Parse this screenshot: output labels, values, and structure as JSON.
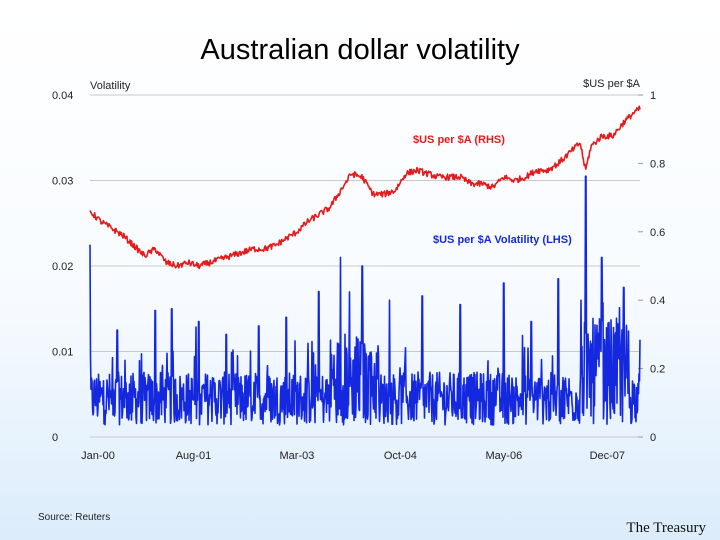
{
  "slide": {
    "title": "Australian dollar volatility",
    "source": "Source: Reuters",
    "organisation": "The Treasury"
  },
  "chart_data": {
    "type": "line",
    "title": "Australian dollar volatility",
    "ylabel_left": "Volatility",
    "ylabel_right": "$US per $A",
    "y_left_range": [
      0,
      0.04
    ],
    "y_left_ticks": [
      "0",
      "0.01",
      "0.02",
      "0.03",
      "0.04"
    ],
    "y_right_range": [
      0,
      1
    ],
    "y_right_ticks": [
      "0",
      "0.2",
      "0.4",
      "0.6",
      "0.8",
      "1"
    ],
    "x_range": [
      "2000-01",
      "2008-06"
    ],
    "x_ticks": [
      "Jan-00",
      "Aug-01",
      "Mar-03",
      "Oct-04",
      "May-06",
      "Dec-07"
    ],
    "grid": "horizontal",
    "colors": {
      "rhs_series": "#e51a1a",
      "lhs_series": "#1428e0"
    },
    "series": [
      {
        "name": "$US per $A (RHS)",
        "axis": "right",
        "x": [
          "2000-01",
          "2000-03",
          "2000-05",
          "2000-07",
          "2000-09",
          "2000-11",
          "2001-01",
          "2001-03",
          "2001-05",
          "2001-07",
          "2001-09",
          "2001-11",
          "2002-01",
          "2002-03",
          "2002-05",
          "2002-07",
          "2002-09",
          "2002-11",
          "2003-01",
          "2003-03",
          "2003-05",
          "2003-07",
          "2003-09",
          "2003-11",
          "2004-01",
          "2004-03",
          "2004-05",
          "2004-07",
          "2004-09",
          "2004-11",
          "2005-01",
          "2005-03",
          "2005-05",
          "2005-07",
          "2005-09",
          "2005-11",
          "2006-01",
          "2006-03",
          "2006-05",
          "2006-07",
          "2006-09",
          "2006-11",
          "2007-01",
          "2007-03",
          "2007-05",
          "2007-07",
          "2007-08",
          "2007-09",
          "2007-11",
          "2008-01",
          "2008-03",
          "2008-05",
          "2008-06"
        ],
        "values": [
          0.66,
          0.63,
          0.61,
          0.59,
          0.56,
          0.53,
          0.55,
          0.51,
          0.5,
          0.51,
          0.5,
          0.51,
          0.52,
          0.53,
          0.54,
          0.55,
          0.55,
          0.56,
          0.58,
          0.6,
          0.63,
          0.65,
          0.67,
          0.72,
          0.77,
          0.76,
          0.71,
          0.71,
          0.72,
          0.77,
          0.78,
          0.77,
          0.76,
          0.76,
          0.76,
          0.74,
          0.74,
          0.73,
          0.76,
          0.75,
          0.76,
          0.78,
          0.78,
          0.8,
          0.83,
          0.86,
          0.78,
          0.85,
          0.88,
          0.88,
          0.92,
          0.95,
          0.96
        ]
      },
      {
        "name": "$US per $A Volatility (LHS)",
        "axis": "left",
        "baseline": 0.004,
        "peaks": [
          {
            "x": "2000-01",
            "value": 0.0225
          },
          {
            "x": "2000-06",
            "value": 0.0125
          },
          {
            "x": "2001-01",
            "value": 0.0148
          },
          {
            "x": "2001-04",
            "value": 0.015
          },
          {
            "x": "2001-09",
            "value": 0.0135
          },
          {
            "x": "2002-02",
            "value": 0.012
          },
          {
            "x": "2002-08",
            "value": 0.013
          },
          {
            "x": "2003-01",
            "value": 0.014
          },
          {
            "x": "2003-07",
            "value": 0.017
          },
          {
            "x": "2003-11",
            "value": 0.021
          },
          {
            "x": "2004-03",
            "value": 0.02
          },
          {
            "x": "2004-08",
            "value": 0.016
          },
          {
            "x": "2005-02",
            "value": 0.0165
          },
          {
            "x": "2005-09",
            "value": 0.0155
          },
          {
            "x": "2006-05",
            "value": 0.018
          },
          {
            "x": "2006-10",
            "value": 0.0135
          },
          {
            "x": "2007-03",
            "value": 0.0185
          },
          {
            "x": "2007-08",
            "value": 0.0305
          },
          {
            "x": "2007-11",
            "value": 0.021
          },
          {
            "x": "2008-03",
            "value": 0.0175
          }
        ]
      }
    ],
    "legend": "inline labels"
  }
}
